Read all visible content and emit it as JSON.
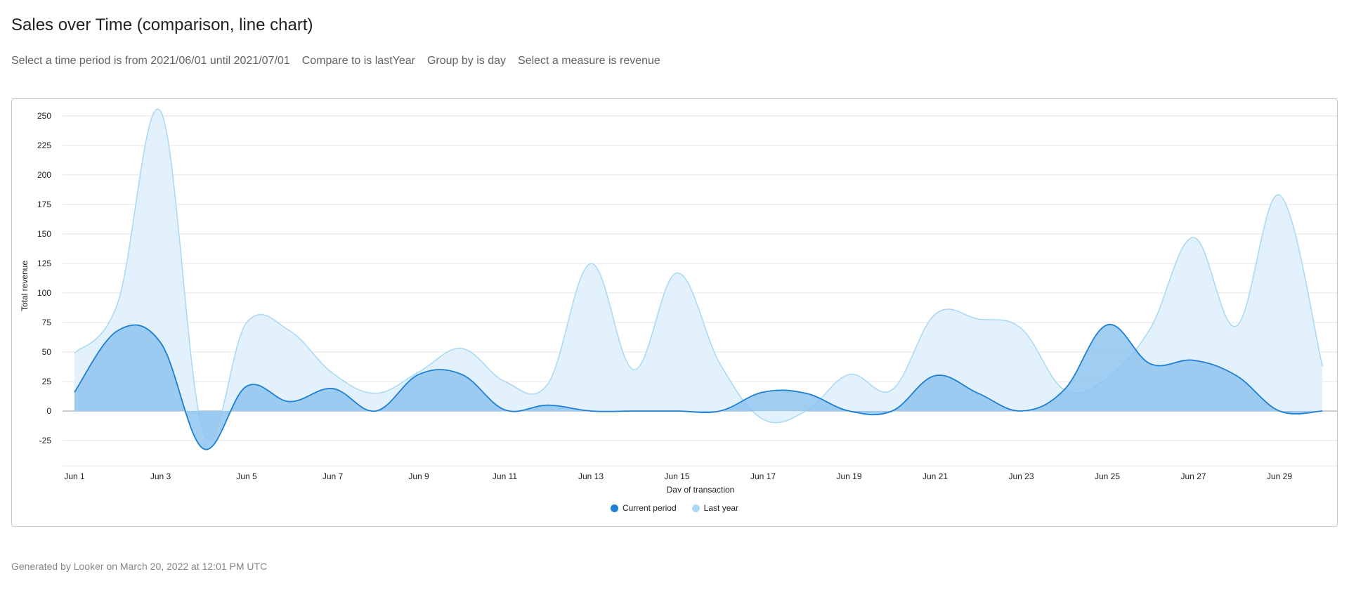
{
  "page": {
    "title": "Sales over Time (comparison, line chart)",
    "filters": [
      "Select a time period is from 2021/06/01 until 2021/07/01",
      "Compare to is lastYear",
      "Group by is day",
      "Select a measure is revenue"
    ],
    "footer": "Generated by Looker on March 20, 2022 at 12:01 PM UTC"
  },
  "colors": {
    "current_line": "#1e7fd2",
    "current_fill": "#8fc4f0",
    "last_line": "#a8d8f5",
    "last_fill": "#dff0fc",
    "grid": "#e4e6e8",
    "zero_line": "#9aa0a6"
  },
  "chart_data": {
    "type": "area",
    "title": "",
    "xlabel": "Day of transaction",
    "ylabel": "Total revenue",
    "ylim": [
      -45,
      250
    ],
    "yticks": [
      250,
      225,
      200,
      175,
      150,
      125,
      100,
      75,
      50,
      25,
      0,
      -25
    ],
    "x": [
      "Jun 1",
      "Jun 2",
      "Jun 3",
      "Jun 4",
      "Jun 5",
      "Jun 6",
      "Jun 7",
      "Jun 8",
      "Jun 9",
      "Jun 10",
      "Jun 11",
      "Jun 12",
      "Jun 13",
      "Jun 14",
      "Jun 15",
      "Jun 16",
      "Jun 17",
      "Jun 18",
      "Jun 19",
      "Jun 20",
      "Jun 21",
      "Jun 22",
      "Jun 23",
      "Jun 24",
      "Jun 25",
      "Jun 26",
      "Jun 27",
      "Jun 28",
      "Jun 29",
      "Jun 30"
    ],
    "xtick_labels": [
      "Jun 1",
      "Jun 3",
      "Jun 5",
      "Jun 7",
      "Jun 9",
      "Jun 11",
      "Jun 13",
      "Jun 15",
      "Jun 17",
      "Jun 19",
      "Jun 21",
      "Jun 23",
      "Jun 25",
      "Jun 27",
      "Jun 29"
    ],
    "series": [
      {
        "name": "Current period",
        "values": [
          16,
          68,
          58,
          -32,
          21,
          8,
          19,
          0,
          31,
          31,
          1,
          5,
          0,
          0,
          0,
          0,
          16,
          15,
          0,
          0,
          30,
          15,
          0,
          18,
          73,
          40,
          43,
          30,
          0,
          0
        ]
      },
      {
        "name": "Last year",
        "values": [
          49,
          91,
          254,
          -18,
          75,
          68,
          32,
          15,
          33,
          53,
          25,
          23,
          125,
          35,
          117,
          40,
          -7,
          0,
          31,
          18,
          82,
          78,
          70,
          18,
          28,
          70,
          147,
          72,
          183,
          38
        ]
      }
    ],
    "legend_position": "bottom-center",
    "grid": true
  }
}
